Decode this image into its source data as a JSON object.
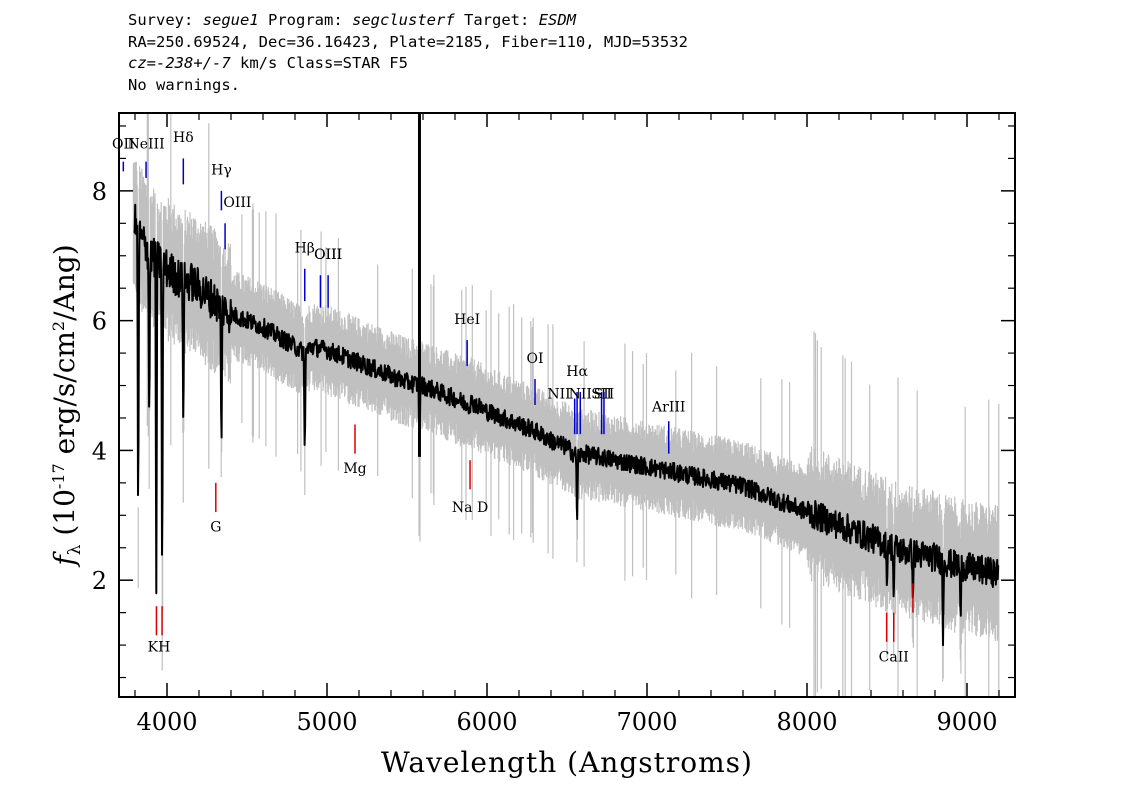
{
  "header": {
    "survey_label": "Survey:",
    "survey": "segue1",
    "program_label": "Program:",
    "program": "segclusterf",
    "target_label": "Target:",
    "target": "ESDM",
    "line2": "RA=250.69524, Dec=36.16423, Plate=2185, Fiber=110, MJD=53532",
    "cz_label": "cz=",
    "cz": "-238+/-7",
    "cz_tail": "km/s Class=STAR F5",
    "line4": "No warnings."
  },
  "chart_data": {
    "type": "line",
    "xlabel": "Wavelength (Angstroms)",
    "ylabel": "f_λ (10^-17 erg/s/cm^2/Ang)",
    "xlim": [
      3700,
      9300
    ],
    "ylim": [
      0.2,
      9.2
    ],
    "x_ticks": [
      4000,
      5000,
      6000,
      7000,
      8000,
      9000
    ],
    "y_ticks": [
      2,
      4,
      6,
      8
    ],
    "grid": false,
    "colors": {
      "flux": "#000000",
      "error": "#c0c0c0",
      "emission": "#0000cc",
      "absorption": "#dd0000"
    },
    "series": [
      {
        "role": "smoothed flux",
        "x": [
          3800,
          3830,
          3900,
          3950,
          4000,
          4050,
          4100,
          4150,
          4200,
          4250,
          4300,
          4340,
          4400,
          4500,
          4600,
          4700,
          4800,
          4861,
          4900,
          5000,
          5100,
          5200,
          5300,
          5400,
          5500,
          5600,
          5700,
          5800,
          5890,
          5900,
          6000,
          6100,
          6200,
          6300,
          6400,
          6500,
          6563,
          6600,
          6700,
          6800,
          6900,
          7000,
          7100,
          7200,
          7300,
          7400,
          7500,
          7600,
          7700,
          7800,
          7900,
          8000,
          8100,
          8200,
          8300,
          8400,
          8500,
          8600,
          8700,
          8800,
          8900,
          9000,
          9100,
          9200
        ],
        "y": [
          7.5,
          7.3,
          7.0,
          6.9,
          6.8,
          6.7,
          6.6,
          6.6,
          6.5,
          6.4,
          6.3,
          6.2,
          6.1,
          6.0,
          5.9,
          5.75,
          5.6,
          5.5,
          5.6,
          5.55,
          5.45,
          5.35,
          5.25,
          5.15,
          5.05,
          5.0,
          4.9,
          4.8,
          4.7,
          4.75,
          4.6,
          4.5,
          4.4,
          4.3,
          4.15,
          4.05,
          3.9,
          3.95,
          3.9,
          3.85,
          3.8,
          3.75,
          3.7,
          3.65,
          3.6,
          3.55,
          3.5,
          3.45,
          3.35,
          3.25,
          3.15,
          3.05,
          2.95,
          2.85,
          2.75,
          2.65,
          2.55,
          2.45,
          2.4,
          2.35,
          2.25,
          2.2,
          2.15,
          2.1
        ]
      }
    ],
    "absorption_features": [
      {
        "x": 3820,
        "y": 2.5
      },
      {
        "x": 3889,
        "y": 4.2
      },
      {
        "x": 3933,
        "y": 1.8
      },
      {
        "x": 3970,
        "y": 1.5
      },
      {
        "x": 4102,
        "y": 4.1
      },
      {
        "x": 4340,
        "y": 3.8
      },
      {
        "x": 4861,
        "y": 3.8
      },
      {
        "x": 5578,
        "y": 3.9
      },
      {
        "x": 6563,
        "y": 2.75
      },
      {
        "x": 8500,
        "y": 1.8
      },
      {
        "x": 8542,
        "y": 1.6
      },
      {
        "x": 8662,
        "y": 1.6
      },
      {
        "x": 8850,
        "y": 1.0
      },
      {
        "x": 8960,
        "y": 1.3
      }
    ],
    "spike": {
      "x": 5578,
      "y_top": 9.2,
      "y_bottom": 3.9
    },
    "emission_lines": [
      {
        "label": "OII",
        "x": 3727,
        "label_x": 3727,
        "y_top": 8.45,
        "y_bot": 8.3,
        "text_y": 8.65
      },
      {
        "label": "NeIII",
        "x": 3869,
        "label_x": 3869,
        "y_top": 8.45,
        "y_bot": 8.2,
        "text_y": 8.65
      },
      {
        "label": "Hδ",
        "x": 4102,
        "label_x": 4102,
        "y_top": 8.5,
        "y_bot": 8.1,
        "text_y": 8.75
      },
      {
        "label": "Hγ",
        "x": 4340,
        "label_x": 4340,
        "y_top": 8.0,
        "y_bot": 7.7,
        "text_y": 8.25
      },
      {
        "label": "OIII",
        "x": 4363,
        "label_x": 4440,
        "y_top": 7.5,
        "y_bot": 7.1,
        "text_y": 7.75
      },
      {
        "label": "Hβ",
        "x": 4861,
        "label_x": 4861,
        "y_top": 6.8,
        "y_bot": 6.3,
        "text_y": 7.05
      },
      {
        "label": "OIII",
        "x": 4959,
        "label_x": 5007,
        "y_top": 6.7,
        "y_bot": 6.2,
        "text_y": 6.95
      },
      {
        "label": "OIII",
        "x": 5007,
        "label_x": 5007,
        "y_top": 6.7,
        "y_bot": 6.2,
        "text_y": 6.95
      },
      {
        "label": "HeI",
        "x": 5876,
        "label_x": 5876,
        "y_top": 5.7,
        "y_bot": 5.3,
        "text_y": 5.95
      },
      {
        "label": "OI",
        "x": 6300,
        "label_x": 6300,
        "y_top": 5.1,
        "y_bot": 4.7,
        "text_y": 5.35
      },
      {
        "label": "NII",
        "x": 6548,
        "label_x": 6450,
        "y_top": 4.8,
        "y_bot": 4.25,
        "text_y": 4.8
      },
      {
        "label": "Hα",
        "x": 6563,
        "label_x": 6563,
        "y_top": 4.9,
        "y_bot": 4.25,
        "text_y": 5.15
      },
      {
        "label": "NII",
        "x": 6583,
        "label_x": 6583,
        "y_top": 4.9,
        "y_bot": 4.25,
        "text_y": 4.8
      },
      {
        "label": "SII",
        "x": 6716,
        "label_x": 6716,
        "y_top": 4.9,
        "y_bot": 4.25,
        "text_y": 4.8
      },
      {
        "label": "SII",
        "x": 6731,
        "label_x": 6731,
        "y_top": 4.9,
        "y_bot": 4.25,
        "text_y": 4.8
      },
      {
        "label": "ArIII",
        "x": 7136,
        "label_x": 7136,
        "y_top": 4.45,
        "y_bot": 3.95,
        "text_y": 4.6
      }
    ],
    "absorption_lines": [
      {
        "label": "KH",
        "x": 3934,
        "label_x": 3950,
        "y_top": 1.6,
        "y_bot": 1.15,
        "text_y": 0.9
      },
      {
        "label": "",
        "x": 3969,
        "label_x": 3969,
        "y_top": 1.6,
        "y_bot": 1.15,
        "text_y": 0.9
      },
      {
        "label": "G",
        "x": 4305,
        "label_x": 4305,
        "y_top": 3.5,
        "y_bot": 3.05,
        "text_y": 2.75
      },
      {
        "label": "Mg",
        "x": 5175,
        "label_x": 5175,
        "y_top": 4.4,
        "y_bot": 3.95,
        "text_y": 3.65
      },
      {
        "label": "Na D",
        "x": 5894,
        "label_x": 5894,
        "y_top": 3.85,
        "y_bot": 3.4,
        "text_y": 3.05
      },
      {
        "label": "CaII",
        "x": 8498,
        "label_x": 8542,
        "y_top": 1.5,
        "y_bot": 1.05,
        "text_y": 0.75
      },
      {
        "label": "",
        "x": 8542,
        "label_x": 8542,
        "y_top": 1.5,
        "y_bot": 1.05,
        "text_y": 0.75
      },
      {
        "label": "",
        "x": 8662,
        "label_x": 8662,
        "y_top": 1.95,
        "y_bot": 1.5,
        "text_y": 0.75
      }
    ]
  }
}
